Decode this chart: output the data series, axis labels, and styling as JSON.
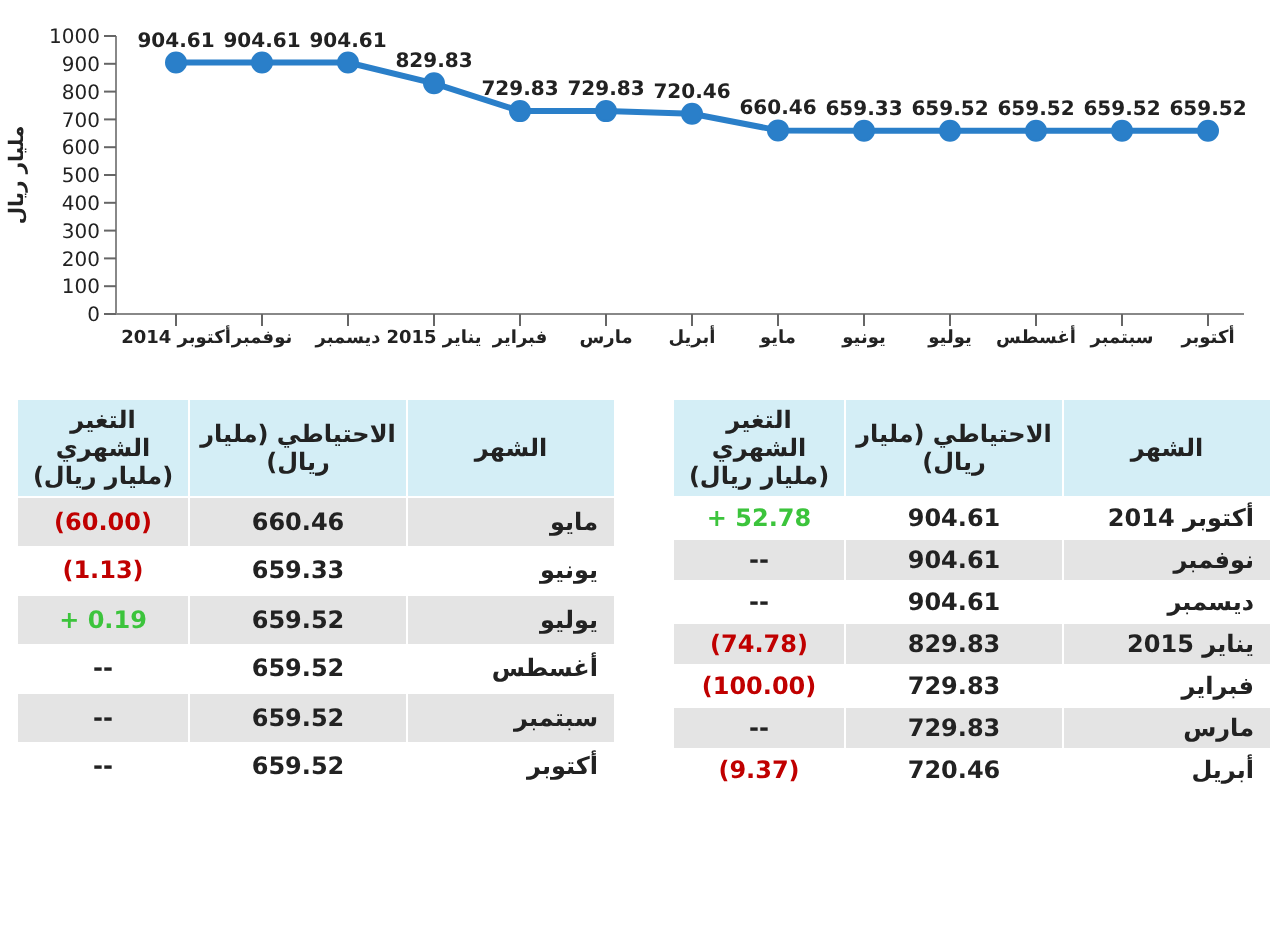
{
  "chart_data": {
    "type": "line",
    "ylabel": "مليار ريال",
    "categories": [
      "أكتوبر 2014",
      "نوفمبر",
      "ديسمبر",
      "يناير 2015",
      "فبراير",
      "مارس",
      "أبريل",
      "مايو",
      "يونيو",
      "يوليو",
      "أغسطس",
      "سبتمبر",
      "أكتوبر"
    ],
    "series": [
      {
        "color": "#2a7fc9",
        "values": [
          904.61,
          904.61,
          904.61,
          829.83,
          729.83,
          729.83,
          720.46,
          660.46,
          659.33,
          659.52,
          659.52,
          659.52,
          659.52
        ]
      }
    ],
    "ylim": [
      0,
      1000
    ],
    "yticks": [
      0,
      100,
      200,
      300,
      400,
      500,
      600,
      700,
      800,
      900,
      1000
    ],
    "grid": false,
    "marker": "circle",
    "data_labels": true,
    "annotations": [
      "الشهر",
      "الاحتياطي (مليار ريال)",
      "التغير الشهري (مليار ريال)",
      "904.61",
      "904.61",
      "904.61",
      "829.83",
      "729.83",
      "729.83",
      "720.46",
      "660.46",
      "659.33",
      "659.52",
      "659.52",
      "659.52",
      "659.52",
      "52.78 +",
      "--",
      "--",
      "(74.78)",
      "(100.00)",
      "--",
      "(9.37)",
      "(60.00)",
      "(1.13)",
      "0.19 +",
      "--",
      "--",
      "--"
    ]
  }
}
